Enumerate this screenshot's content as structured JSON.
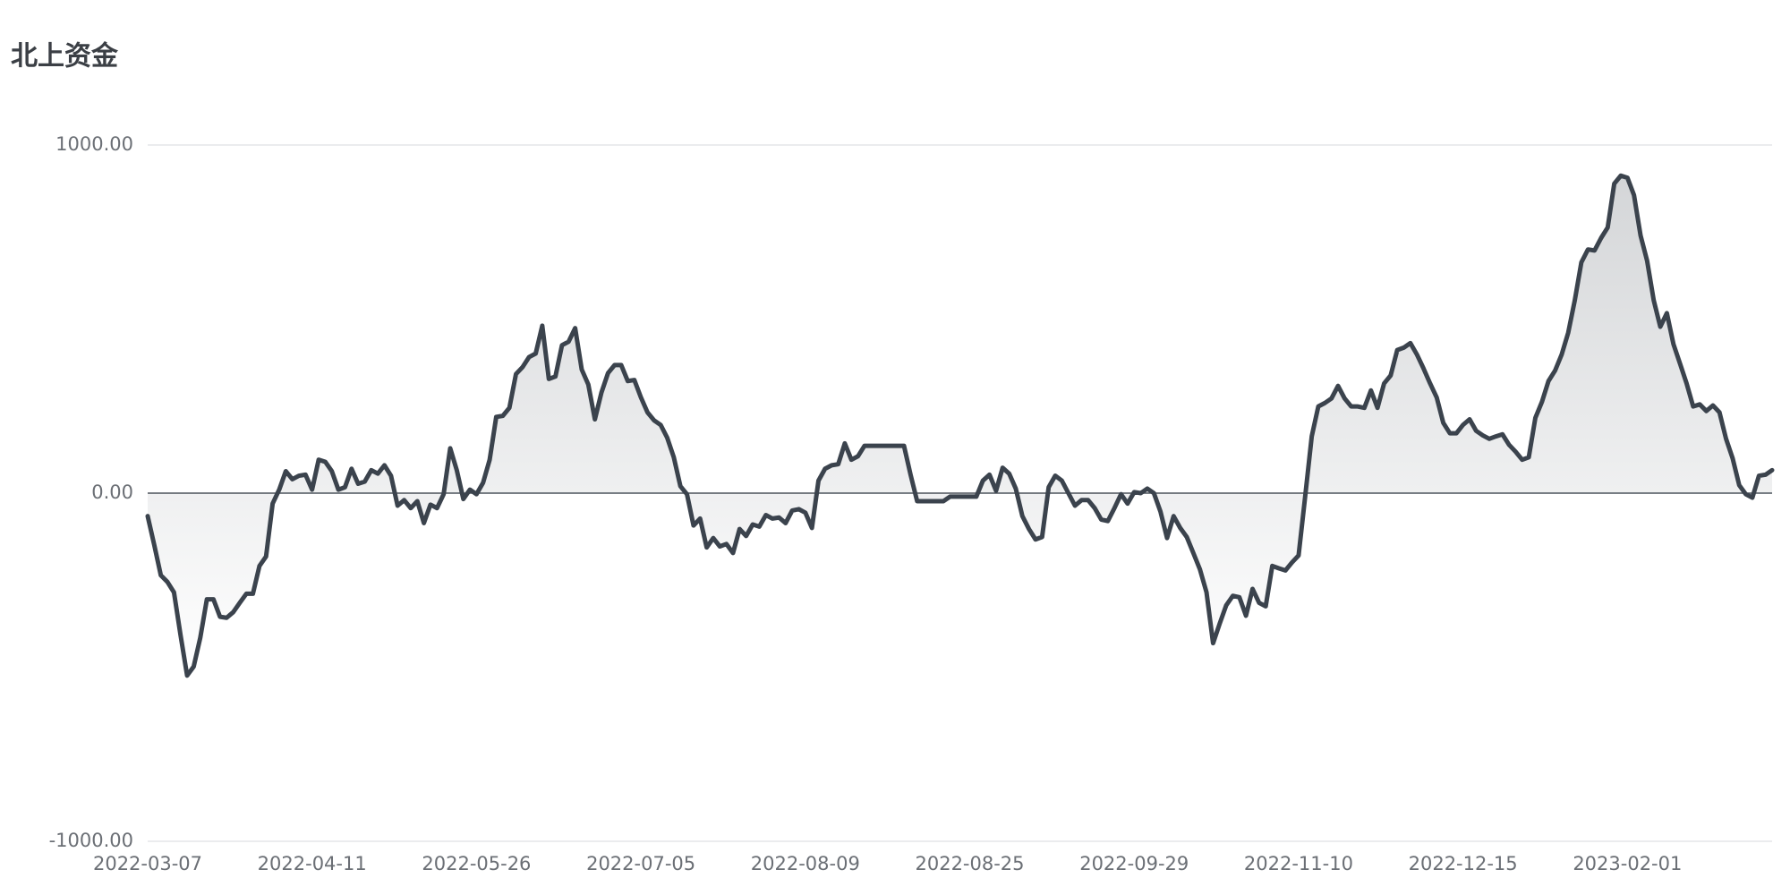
{
  "chart_data": {
    "type": "area",
    "title": "北上资金",
    "categories": [
      "2022-03-07",
      null,
      null,
      null,
      null,
      null,
      null,
      null,
      null,
      null,
      null,
      null,
      null,
      null,
      null,
      null,
      null,
      null,
      null,
      null,
      null,
      null,
      null,
      null,
      null,
      "2022-04-11",
      null,
      null,
      null,
      null,
      null,
      null,
      null,
      null,
      null,
      null,
      null,
      null,
      null,
      null,
      null,
      null,
      null,
      null,
      null,
      null,
      null,
      null,
      null,
      null,
      "2022-05-26",
      null,
      null,
      null,
      null,
      null,
      null,
      null,
      null,
      null,
      null,
      null,
      null,
      null,
      null,
      null,
      null,
      null,
      null,
      null,
      null,
      null,
      null,
      null,
      null,
      "2022-07-05",
      null,
      null,
      null,
      null,
      null,
      null,
      null,
      null,
      null,
      null,
      null,
      null,
      null,
      null,
      null,
      null,
      null,
      null,
      null,
      null,
      null,
      null,
      null,
      null,
      "2022-08-09",
      null,
      null,
      null,
      null,
      null,
      null,
      null,
      null,
      null,
      null,
      null,
      null,
      null,
      null,
      null,
      null,
      null,
      null,
      null,
      null,
      null,
      null,
      null,
      null,
      "2022-08-25",
      null,
      null,
      null,
      null,
      null,
      null,
      null,
      null,
      null,
      null,
      null,
      null,
      null,
      null,
      null,
      null,
      null,
      null,
      null,
      null,
      null,
      null,
      null,
      null,
      "2022-09-29",
      null,
      null,
      null,
      null,
      null,
      null,
      null,
      null,
      null,
      null,
      null,
      null,
      null,
      null,
      null,
      null,
      null,
      null,
      null,
      null,
      null,
      null,
      null,
      null,
      "2022-11-10",
      null,
      null,
      null,
      null,
      null,
      null,
      null,
      null,
      null,
      null,
      null,
      null,
      null,
      null,
      null,
      null,
      null,
      null,
      null,
      null,
      null,
      null,
      null,
      null,
      "2022-12-15",
      null,
      null,
      null,
      null,
      null,
      null,
      null,
      null,
      null,
      null,
      null,
      null,
      null,
      null,
      null,
      null,
      null,
      null,
      null,
      null,
      null,
      null,
      null,
      null,
      "2023-02-01",
      null,
      null,
      null,
      null,
      null,
      null,
      null,
      null,
      null,
      null,
      null,
      null,
      null,
      null,
      null,
      null,
      null,
      null,
      null,
      null,
      null,
      null
    ],
    "values": [
      -66,
      -149,
      -236,
      -255,
      -285,
      -408,
      -524,
      -498,
      -415,
      -305,
      -305,
      -355,
      -358,
      -342,
      -315,
      -289,
      -289,
      -209,
      -182,
      -30,
      10,
      63,
      40,
      50,
      53,
      10,
      96,
      90,
      63,
      10,
      17,
      70,
      27,
      33,
      66,
      56,
      80,
      50,
      -36,
      -20,
      -43,
      -23,
      -86,
      -33,
      -43,
      -3,
      129,
      66,
      -17,
      10,
      -3,
      30,
      96,
      219,
      222,
      245,
      342,
      362,
      391,
      401,
      481,
      328,
      335,
      425,
      435,
      474,
      355,
      312,
      212,
      289,
      345,
      368,
      368,
      322,
      325,
      275,
      232,
      209,
      196,
      159,
      103,
      20,
      -3,
      -93,
      -73,
      -156,
      -129,
      -153,
      -146,
      -172,
      -103,
      -123,
      -90,
      -96,
      -63,
      -73,
      -70,
      -86,
      -50,
      -46,
      -56,
      -100,
      36,
      70,
      80,
      83,
      143,
      96,
      106,
      136,
      136,
      136,
      136,
      136,
      136,
      136,
      53,
      -23,
      -23,
      -23,
      -23,
      -23,
      -10,
      -10,
      -10,
      -10,
      -10,
      36,
      53,
      7,
      73,
      56,
      13,
      -66,
      -103,
      -133,
      -126,
      17,
      50,
      36,
      0,
      -36,
      -20,
      -20,
      -43,
      -76,
      -80,
      -43,
      -3,
      -30,
      3,
      0,
      13,
      0,
      -53,
      -129,
      -66,
      -100,
      -126,
      -172,
      -219,
      -285,
      -431,
      -375,
      -322,
      -295,
      -299,
      -352,
      -275,
      -315,
      -325,
      -209,
      -216,
      -222,
      -199,
      -179,
      -10,
      163,
      249,
      259,
      272,
      308,
      272,
      249,
      249,
      245,
      295,
      245,
      315,
      338,
      411,
      418,
      431,
      398,
      358,
      315,
      275,
      202,
      172,
      172,
      196,
      212,
      179,
      166,
      156,
      163,
      169,
      139,
      119,
      96,
      103,
      216,
      262,
      322,
      352,
      398,
      461,
      554,
      663,
      700,
      697,
      733,
      763,
      889,
      912,
      906,
      856,
      740,
      667,
      554,
      478,
      517,
      428,
      372,
      315,
      249,
      255,
      236,
      252,
      232,
      156,
      100,
      23,
      -3,
      -13,
      50,
      53,
      66
    ],
    "color": "#3b434d",
    "ylim": [
      -1000,
      1000
    ],
    "yticks": [
      {
        "value": -1000,
        "label": "-1000.00"
      },
      {
        "value": 0,
        "label": "0.00"
      },
      {
        "value": 1000,
        "label": "1000.00"
      }
    ],
    "grid": true
  }
}
